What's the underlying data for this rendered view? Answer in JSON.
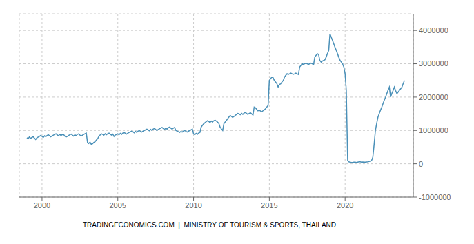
{
  "chart_data": {
    "type": "line",
    "x": [
      1999.0,
      1999.08,
      1999.17,
      1999.25,
      1999.33,
      1999.42,
      1999.5,
      1999.58,
      1999.67,
      1999.75,
      1999.83,
      1999.92,
      2000.0,
      2000.08,
      2000.17,
      2000.25,
      2000.33,
      2000.42,
      2000.5,
      2000.58,
      2000.67,
      2000.75,
      2000.83,
      2000.92,
      2001.0,
      2001.08,
      2001.17,
      2001.25,
      2001.33,
      2001.42,
      2001.5,
      2001.58,
      2001.67,
      2001.75,
      2001.83,
      2001.92,
      2002.0,
      2002.08,
      2002.17,
      2002.25,
      2002.33,
      2002.42,
      2002.5,
      2002.58,
      2002.67,
      2002.75,
      2002.83,
      2002.92,
      2003.0,
      2003.08,
      2003.17,
      2003.25,
      2003.33,
      2003.42,
      2003.5,
      2003.58,
      2003.67,
      2003.75,
      2003.83,
      2003.92,
      2004.0,
      2004.08,
      2004.17,
      2004.25,
      2004.33,
      2004.42,
      2004.5,
      2004.58,
      2004.67,
      2004.75,
      2004.83,
      2004.92,
      2005.0,
      2005.08,
      2005.17,
      2005.25,
      2005.33,
      2005.42,
      2005.5,
      2005.58,
      2005.67,
      2005.75,
      2005.83,
      2005.92,
      2006.0,
      2006.08,
      2006.17,
      2006.25,
      2006.33,
      2006.42,
      2006.5,
      2006.58,
      2006.67,
      2006.75,
      2006.83,
      2006.92,
      2007.0,
      2007.08,
      2007.17,
      2007.25,
      2007.33,
      2007.42,
      2007.5,
      2007.58,
      2007.67,
      2007.75,
      2007.83,
      2007.92,
      2008.0,
      2008.08,
      2008.17,
      2008.25,
      2008.33,
      2008.42,
      2008.5,
      2008.58,
      2008.67,
      2008.75,
      2008.83,
      2008.92,
      2009.0,
      2009.08,
      2009.17,
      2009.25,
      2009.33,
      2009.42,
      2009.5,
      2009.58,
      2009.67,
      2009.75,
      2009.83,
      2009.92,
      2010.0,
      2010.08,
      2010.17,
      2010.25,
      2010.33,
      2010.42,
      2010.5,
      2010.58,
      2010.67,
      2010.75,
      2010.83,
      2010.92,
      2011.0,
      2011.08,
      2011.17,
      2011.25,
      2011.33,
      2011.42,
      2011.5,
      2011.58,
      2011.67,
      2011.75,
      2011.83,
      2011.92,
      2012.0,
      2012.08,
      2012.17,
      2012.25,
      2012.33,
      2012.42,
      2012.5,
      2012.58,
      2012.67,
      2012.75,
      2012.83,
      2012.92,
      2013.0,
      2013.08,
      2013.17,
      2013.25,
      2013.33,
      2013.42,
      2013.5,
      2013.58,
      2013.67,
      2013.75,
      2013.83,
      2013.92,
      2014.0,
      2014.08,
      2014.17,
      2014.25,
      2014.33,
      2014.42,
      2014.5,
      2014.58,
      2014.67,
      2014.75,
      2014.83,
      2014.92,
      2015.0,
      2015.08,
      2015.17,
      2015.25,
      2015.33,
      2015.42,
      2015.5,
      2015.58,
      2015.67,
      2015.75,
      2015.83,
      2015.92,
      2016.0,
      2016.08,
      2016.17,
      2016.25,
      2016.33,
      2016.42,
      2016.5,
      2016.58,
      2016.67,
      2016.75,
      2016.83,
      2016.92,
      2017.0,
      2017.08,
      2017.17,
      2017.25,
      2017.33,
      2017.42,
      2017.5,
      2017.58,
      2017.67,
      2017.75,
      2017.83,
      2017.92,
      2018.0,
      2018.08,
      2018.17,
      2018.25,
      2018.33,
      2018.42,
      2018.5,
      2018.58,
      2018.67,
      2018.75,
      2018.83,
      2018.92,
      2019.0,
      2019.08,
      2019.17,
      2019.25,
      2019.33,
      2019.42,
      2019.5,
      2019.58,
      2019.67,
      2019.75,
      2019.83,
      2019.92,
      2020.0,
      2020.08,
      2020.17,
      2020.25,
      2020.33,
      2020.42,
      2020.5,
      2020.58,
      2020.67,
      2020.75,
      2020.83,
      2020.92,
      2021.0,
      2021.08,
      2021.17,
      2021.25,
      2021.33,
      2021.42,
      2021.5,
      2021.58,
      2021.67,
      2021.75,
      2021.83,
      2021.92,
      2022.0,
      2022.08,
      2022.17,
      2022.25,
      2022.33,
      2022.42,
      2022.5,
      2022.58,
      2022.67,
      2022.75,
      2022.83,
      2022.92,
      2023.0,
      2023.08,
      2023.17,
      2023.25,
      2023.33,
      2023.42,
      2023.5,
      2023.58,
      2023.67,
      2023.75,
      2023.83,
      2023.92
    ],
    "values": [
      780000,
      750000,
      810000,
      760000,
      790000,
      810000,
      770000,
      730000,
      780000,
      800000,
      820000,
      850000,
      820000,
      790000,
      840000,
      810000,
      850000,
      870000,
      840000,
      810000,
      840000,
      860000,
      880000,
      900000,
      870000,
      840000,
      880000,
      850000,
      870000,
      880000,
      830000,
      800000,
      820000,
      850000,
      870000,
      890000,
      860000,
      830000,
      870000,
      840000,
      880000,
      900000,
      860000,
      830000,
      860000,
      880000,
      900000,
      920000,
      640000,
      610000,
      650000,
      580000,
      600000,
      640000,
      660000,
      710000,
      750000,
      820000,
      860000,
      900000,
      880000,
      860000,
      900000,
      870000,
      900000,
      920000,
      890000,
      860000,
      890000,
      820000,
      860000,
      880000,
      900000,
      870000,
      910000,
      880000,
      920000,
      940000,
      910000,
      890000,
      920000,
      940000,
      960000,
      980000,
      960000,
      930000,
      970000,
      940000,
      980000,
      1000000,
      970000,
      950000,
      980000,
      1000000,
      1020000,
      1040000,
      1020000,
      990000,
      1030000,
      1000000,
      1040000,
      1060000,
      1030000,
      1000000,
      1030000,
      1050000,
      1070000,
      1090000,
      1060000,
      1030000,
      1070000,
      1040000,
      1080000,
      1100000,
      1070000,
      1040000,
      1070000,
      1090000,
      1000000,
      980000,
      960000,
      940000,
      970000,
      950000,
      980000,
      1000000,
      970000,
      950000,
      980000,
      1000000,
      1020000,
      1040000,
      900000,
      870000,
      910000,
      880000,
      920000,
      940000,
      1100000,
      1150000,
      1200000,
      1230000,
      1260000,
      1290000,
      1270000,
      1240000,
      1280000,
      1250000,
      1290000,
      1310000,
      1280000,
      1250000,
      1210000,
      1100000,
      1050000,
      1000000,
      1200000,
      1250000,
      1300000,
      1350000,
      1400000,
      1450000,
      1420000,
      1390000,
      1420000,
      1450000,
      1480000,
      1510000,
      1500000,
      1470000,
      1510000,
      1480000,
      1520000,
      1540000,
      1510000,
      1480000,
      1510000,
      1530000,
      1500000,
      1460000,
      1700000,
      1680000,
      1630000,
      1590000,
      1610000,
      1580000,
      1560000,
      1590000,
      1620000,
      1650000,
      1700000,
      1750000,
      2500000,
      2550000,
      2600000,
      2580000,
      2500000,
      2450000,
      2400000,
      2300000,
      2380000,
      2400000,
      2450000,
      2500000,
      2600000,
      2650000,
      2700000,
      2680000,
      2700000,
      2720000,
      2700000,
      2680000,
      2700000,
      2720000,
      2700000,
      2680000,
      2900000,
      2950000,
      3000000,
      2980000,
      3000000,
      3020000,
      3000000,
      2980000,
      3000000,
      3020000,
      3000000,
      2980000,
      3200000,
      3250000,
      3300000,
      3280000,
      3100000,
      3050000,
      3080000,
      3100000,
      3120000,
      3200000,
      3300000,
      3400000,
      3900000,
      3800000,
      3700000,
      3600000,
      3500000,
      3400000,
      3300000,
      3200000,
      3100000,
      3050000,
      3000000,
      2900000,
      2700000,
      2200000,
      100000,
      60000,
      50000,
      40000,
      40000,
      50000,
      50000,
      40000,
      50000,
      60000,
      60000,
      50000,
      55000,
      50000,
      50000,
      55000,
      60000,
      70000,
      80000,
      100000,
      200000,
      600000,
      1000000,
      1200000,
      1400000,
      1500000,
      1600000,
      1700000,
      1800000,
      1900000,
      2000000,
      2100000,
      2200000,
      2300000,
      2000000,
      2100000,
      2200000,
      2300000,
      2200000,
      2100000,
      2150000,
      2200000,
      2250000,
      2300000,
      2400000,
      2500000
    ],
    "color": "#4a90b8",
    "xlim": [
      1998.5,
      2024.5
    ],
    "xticks": [
      2000,
      2005,
      2010,
      2015,
      2020
    ],
    "ylim": [
      -1000000,
      4500000
    ],
    "yticks": [
      -1000000,
      0,
      1000000,
      2000000,
      3000000,
      4000000
    ],
    "grid": true,
    "annotations": [
      "TRADINGECONOMICS.COM  |  MINISTRY OF TOURISM & SPORTS, THAILAND"
    ]
  }
}
